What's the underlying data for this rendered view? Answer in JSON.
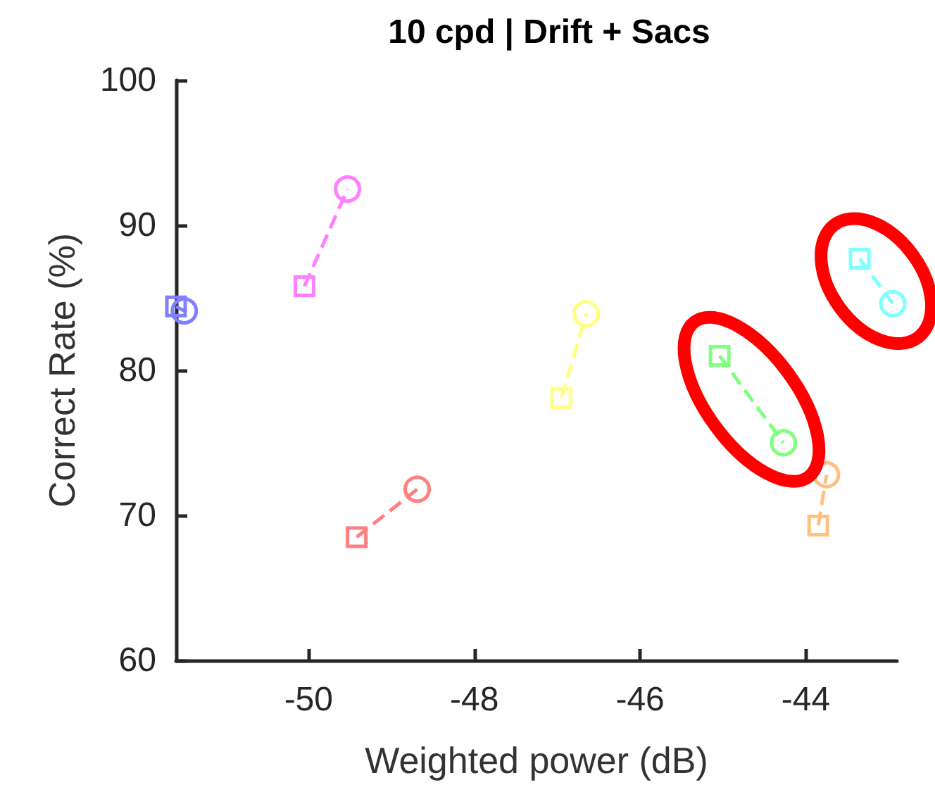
{
  "chart_data": {
    "type": "line",
    "title": "10 cpd | Drift + Sacs",
    "xlabel": "Weighted power (dB)",
    "ylabel": "Correct Rate (%)",
    "xlim": [
      -51.6,
      -42.9
    ],
    "xticks": [
      -50,
      -48,
      -46,
      -44
    ],
    "ylim": [
      60,
      100
    ],
    "yticks": [
      60,
      70,
      80,
      90,
      100
    ],
    "grid": false,
    "legend": false,
    "marker": [
      "square",
      "circle"
    ],
    "line_style": "dashed",
    "series": [
      {
        "color": "#8080ff",
        "x": [
          -51.6,
          -51.5
        ],
        "values": [
          84.4,
          84.1
        ]
      },
      {
        "color": "#ff80ff",
        "x": [
          -50.05,
          -49.53
        ],
        "values": [
          85.8,
          92.5
        ]
      },
      {
        "color": "#ff8080",
        "x": [
          -49.42,
          -48.69
        ],
        "values": [
          68.5,
          71.8
        ]
      },
      {
        "color": "#ffff80",
        "x": [
          -46.95,
          -46.65
        ],
        "values": [
          78.1,
          83.9
        ]
      },
      {
        "color": "#80ff80",
        "x": [
          -45.04,
          -44.27
        ],
        "values": [
          81.0,
          75.0
        ]
      },
      {
        "color": "#ffc080",
        "x": [
          -43.85,
          -43.75
        ],
        "values": [
          69.3,
          72.8
        ]
      },
      {
        "color": "#80ffff",
        "x": [
          -43.35,
          -42.95
        ],
        "values": [
          87.7,
          84.6
        ]
      }
    ]
  }
}
